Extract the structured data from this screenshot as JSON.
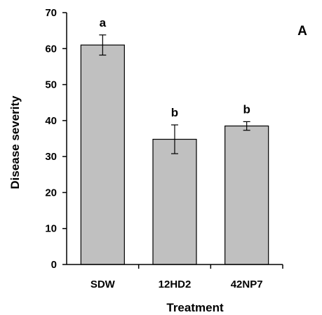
{
  "chart_data": {
    "type": "bar",
    "panel_label": "A",
    "xlabel": "Treatment",
    "ylabel": "Disease severity",
    "ylim": [
      0,
      70
    ],
    "yticks": [
      0,
      10,
      20,
      30,
      40,
      50,
      60,
      70
    ],
    "categories": [
      "SDW",
      "12HD2",
      "42NP7"
    ],
    "values": [
      61,
      34.8,
      38.5
    ],
    "errors": [
      2.8,
      4.0,
      1.2
    ],
    "significance_letters": [
      "a",
      "b",
      "b"
    ],
    "bar_color": "#c0c0c0",
    "bar_edge_color": "#000000",
    "grid": false
  }
}
